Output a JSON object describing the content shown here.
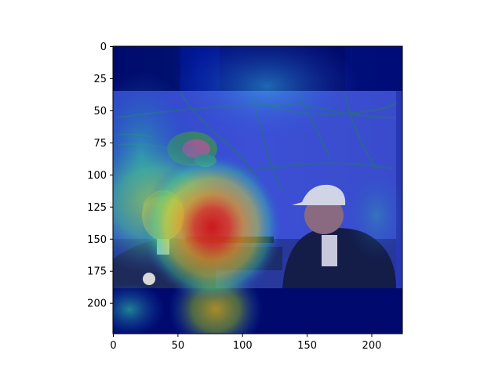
{
  "figure": {
    "image_description_kind": "heatmap-overlay",
    "colormap": "jet",
    "x_ticks": [
      "0",
      "50",
      "100",
      "150",
      "200"
    ],
    "y_ticks": [
      "0",
      "25",
      "50",
      "75",
      "100",
      "125",
      "150",
      "175",
      "200"
    ],
    "x_range": [
      0,
      224
    ],
    "y_range": [
      0,
      224
    ]
  }
}
